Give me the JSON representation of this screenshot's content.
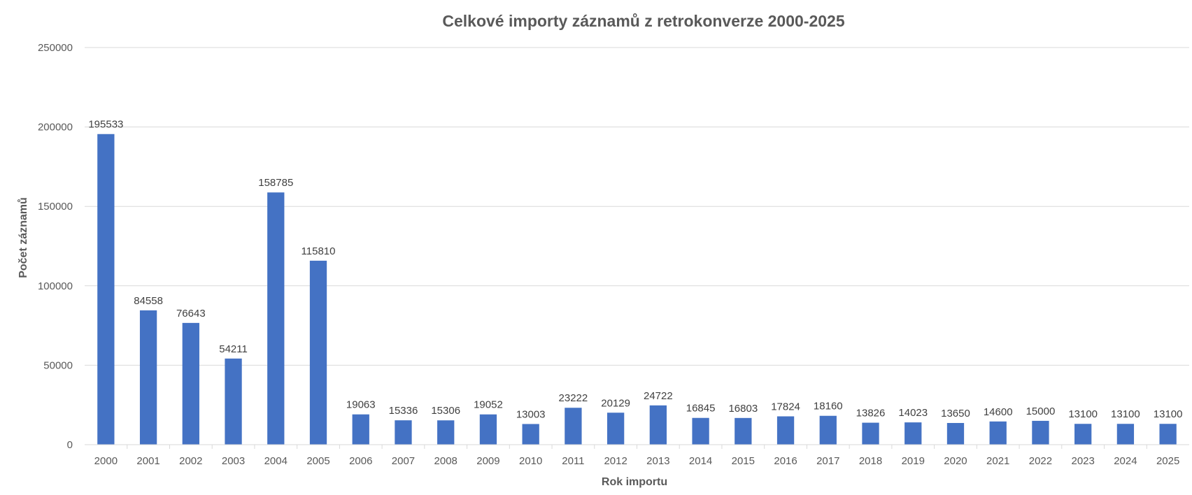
{
  "chart_data": {
    "type": "bar",
    "title": "Celkové importy záznamů z retrokonverze 2000-2025",
    "xlabel": "Rok importu",
    "ylabel": "Počet záznamů",
    "ylim": [
      0,
      250000
    ],
    "yticks": [
      0,
      50000,
      100000,
      150000,
      200000,
      250000
    ],
    "grid": true,
    "legend": "none",
    "bar_color": "#4472c4",
    "categories": [
      "2000",
      "2001",
      "2002",
      "2003",
      "2004",
      "2005",
      "2006",
      "2007",
      "2008",
      "2009",
      "2010",
      "2011",
      "2012",
      "2013",
      "2014",
      "2015",
      "2016",
      "2017",
      "2018",
      "2019",
      "2020",
      "2021",
      "2022",
      "2023",
      "2024",
      "2025"
    ],
    "values": [
      195533,
      84558,
      76643,
      54211,
      158785,
      115810,
      19063,
      15336,
      15306,
      19052,
      13003,
      23222,
      20129,
      24722,
      16845,
      16803,
      17824,
      18160,
      13826,
      14023,
      13650,
      14600,
      15000,
      13100,
      13100,
      13100
    ]
  }
}
